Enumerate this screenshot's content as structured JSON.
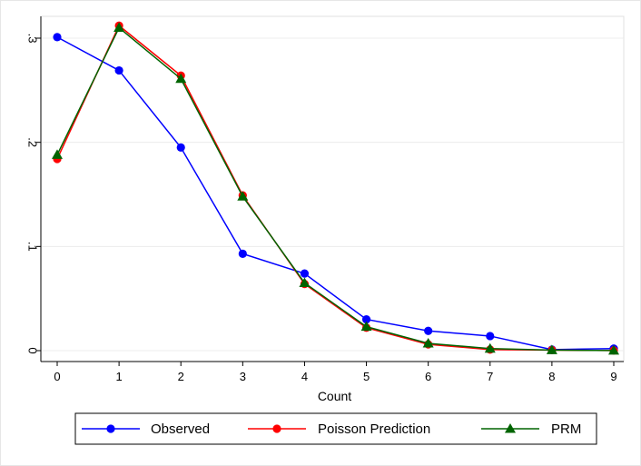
{
  "chart_data": {
    "type": "line",
    "title": "",
    "xlabel": "Count",
    "ylabel": "",
    "x": [
      0,
      1,
      2,
      3,
      4,
      5,
      6,
      7,
      8,
      9
    ],
    "xticks": [
      "0",
      "1",
      "2",
      "3",
      "4",
      "5",
      "6",
      "7",
      "8",
      "9"
    ],
    "yticks": [
      {
        "value": 0,
        "label": "0"
      },
      {
        "value": 0.1,
        "label": ".1"
      },
      {
        "value": 0.2,
        "label": ".2"
      },
      {
        "value": 0.3,
        "label": ".3"
      }
    ],
    "ylim": [
      0,
      0.32
    ],
    "xlim": [
      0,
      9
    ],
    "grid": true,
    "legend_position": "bottom",
    "series": [
      {
        "name": "Observed",
        "color": "#0000ff",
        "marker": "circle",
        "values": [
          0.301,
          0.269,
          0.195,
          0.093,
          0.074,
          0.03,
          0.019,
          0.014,
          0.001,
          0.002
        ]
      },
      {
        "name": "Poisson Prediction",
        "color": "#ff0000",
        "marker": "circle",
        "values": [
          0.184,
          0.312,
          0.264,
          0.149,
          0.064,
          0.022,
          0.006,
          0.001,
          0.0005,
          0.0001
        ]
      },
      {
        "name": "PRM",
        "color": "#006400",
        "marker": "triangle",
        "values": [
          0.188,
          0.31,
          0.261,
          0.148,
          0.065,
          0.023,
          0.007,
          0.002,
          0.0005,
          0.0001
        ]
      }
    ]
  }
}
